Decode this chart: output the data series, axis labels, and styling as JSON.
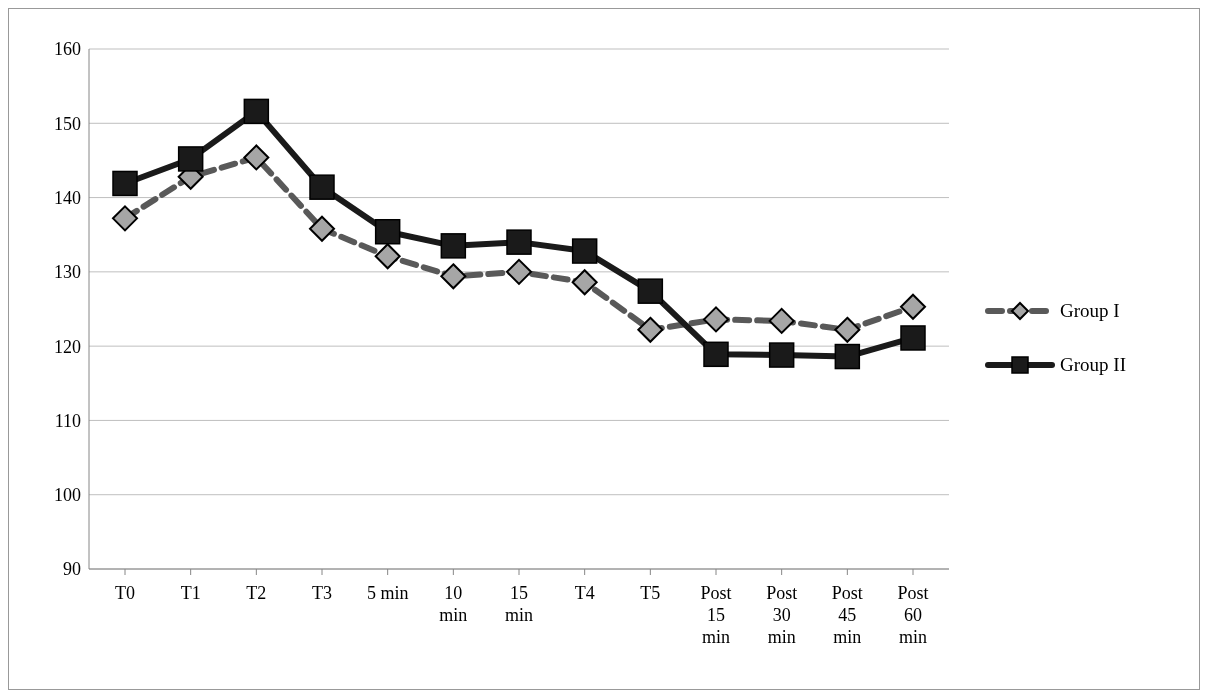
{
  "chart_data": {
    "type": "line",
    "categories": [
      "T0",
      "T1",
      "T2",
      "T3",
      "5 min",
      "10 min",
      "15 min",
      "T4",
      "T5",
      "Post 15 min",
      "Post 30 min",
      "Post 45 min",
      "Post 60 min"
    ],
    "series": [
      {
        "name": "Group I",
        "color": "#595959",
        "marker": "diamond",
        "line_style": "dashed",
        "values": [
          137.2,
          142.8,
          145.4,
          135.8,
          132.1,
          129.4,
          130.0,
          128.6,
          122.2,
          123.6,
          123.4,
          122.2,
          125.3
        ]
      },
      {
        "name": "Group II",
        "color": "#1a1a1a",
        "marker": "square",
        "line_style": "solid",
        "values": [
          141.9,
          145.2,
          151.6,
          141.4,
          135.4,
          133.5,
          134.0,
          132.8,
          127.4,
          118.9,
          118.8,
          118.6,
          121.1
        ]
      }
    ],
    "ylim": [
      90,
      160
    ],
    "yticks": [
      90,
      100,
      110,
      120,
      130,
      140,
      150,
      160
    ],
    "grid": "y",
    "legend": "right"
  }
}
